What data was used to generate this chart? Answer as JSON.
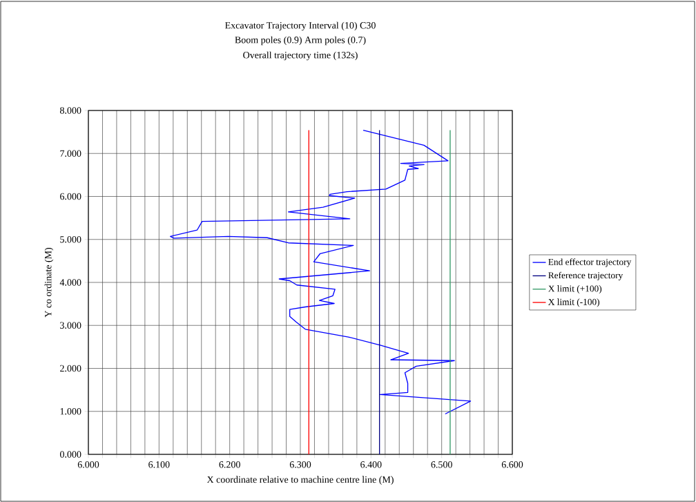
{
  "chart_data": {
    "type": "line",
    "title": "Excavator Trajectory Interval (10) C30",
    "subtitle": "Boom poles (0.9) Arm poles (0.7)",
    "annotations": [
      "Overall trajectory time (132s)"
    ],
    "xlabel": "X coordinate relative to machine centre line (M)",
    "ylabel": "Y co ordinate (M)",
    "xlim": [
      6.0,
      6.6
    ],
    "ylim": [
      0,
      8
    ],
    "xticks": [
      {
        "value": 6.0,
        "label": "6.000"
      },
      {
        "value": 6.02,
        "label": null
      },
      {
        "value": 6.04,
        "label": null
      },
      {
        "value": 6.06,
        "label": null
      },
      {
        "value": 6.08,
        "label": null
      },
      {
        "value": 6.1,
        "label": "6.100"
      },
      {
        "value": 6.12,
        "label": null
      },
      {
        "value": 6.14,
        "label": null
      },
      {
        "value": 6.16,
        "label": null
      },
      {
        "value": 6.18,
        "label": null
      },
      {
        "value": 6.2,
        "label": "6.200"
      },
      {
        "value": 6.22,
        "label": null
      },
      {
        "value": 6.24,
        "label": null
      },
      {
        "value": 6.26,
        "label": null
      },
      {
        "value": 6.28,
        "label": null
      },
      {
        "value": 6.3,
        "label": "6.300"
      },
      {
        "value": 6.32,
        "label": null
      },
      {
        "value": 6.34,
        "label": null
      },
      {
        "value": 6.36,
        "label": null
      },
      {
        "value": 6.38,
        "label": null
      },
      {
        "value": 6.4,
        "label": "6.400"
      },
      {
        "value": 6.42,
        "label": null
      },
      {
        "value": 6.44,
        "label": null
      },
      {
        "value": 6.46,
        "label": null
      },
      {
        "value": 6.48,
        "label": null
      },
      {
        "value": 6.5,
        "label": "6.500"
      },
      {
        "value": 6.52,
        "label": null
      },
      {
        "value": 6.54,
        "label": null
      },
      {
        "value": 6.56,
        "label": null
      },
      {
        "value": 6.58,
        "label": null
      },
      {
        "value": 6.6,
        "label": "6.600"
      }
    ],
    "yticks": [
      {
        "value": 0,
        "label": "0.000"
      },
      {
        "value": 1,
        "label": "1.000"
      },
      {
        "value": 2,
        "label": "2.000"
      },
      {
        "value": 3,
        "label": "3.000"
      },
      {
        "value": 4,
        "label": "4.000"
      },
      {
        "value": 5,
        "label": "5.000"
      },
      {
        "value": 6,
        "label": "6.000"
      },
      {
        "value": 7,
        "label": "7.000"
      },
      {
        "value": 8,
        "label": "8.000"
      }
    ],
    "grid": true,
    "legend": "right",
    "series": [
      {
        "name": "End effector trajectory",
        "color": "#0000ff",
        "x": [
          6.389,
          6.475,
          6.509,
          6.442,
          6.475,
          6.454,
          6.467,
          6.452,
          6.448,
          6.421,
          6.366,
          6.342,
          6.341,
          6.377,
          6.332,
          6.283,
          6.37,
          6.161,
          6.154,
          6.116,
          6.121,
          6.198,
          6.253,
          6.283,
          6.375,
          6.328,
          6.319,
          6.398,
          6.27,
          6.285,
          6.295,
          6.349,
          6.346,
          6.327,
          6.348,
          6.307,
          6.285,
          6.285,
          6.294,
          6.307,
          6.368,
          6.413,
          6.453,
          6.428,
          6.518,
          6.464,
          6.448,
          6.452,
          6.452,
          6.413,
          6.541,
          6.505
        ],
        "values": [
          7.54,
          7.19,
          6.83,
          6.77,
          6.74,
          6.71,
          6.65,
          6.63,
          6.38,
          6.17,
          6.11,
          6.05,
          6.02,
          5.96,
          5.75,
          5.64,
          5.48,
          5.42,
          5.22,
          5.07,
          5.03,
          5.07,
          5.04,
          4.92,
          4.86,
          4.67,
          4.48,
          4.27,
          4.08,
          4.04,
          3.94,
          3.84,
          3.69,
          3.58,
          3.51,
          3.43,
          3.37,
          3.21,
          3.08,
          2.91,
          2.73,
          2.54,
          2.35,
          2.2,
          2.18,
          2.05,
          1.9,
          1.65,
          1.44,
          1.39,
          1.24,
          0.94
        ]
      },
      {
        "name": "Reference trajectory",
        "color": "#000080",
        "x": [
          6.412,
          6.412
        ],
        "values": [
          0,
          7.54
        ]
      },
      {
        "name": "X limit (+100)",
        "color": "#339966",
        "x": [
          6.512,
          6.512
        ],
        "values": [
          0,
          7.54
        ]
      },
      {
        "name": "X limit (-100)",
        "color": "#ff0000",
        "x": [
          6.312,
          6.312
        ],
        "values": [
          0,
          7.54
        ]
      }
    ]
  }
}
